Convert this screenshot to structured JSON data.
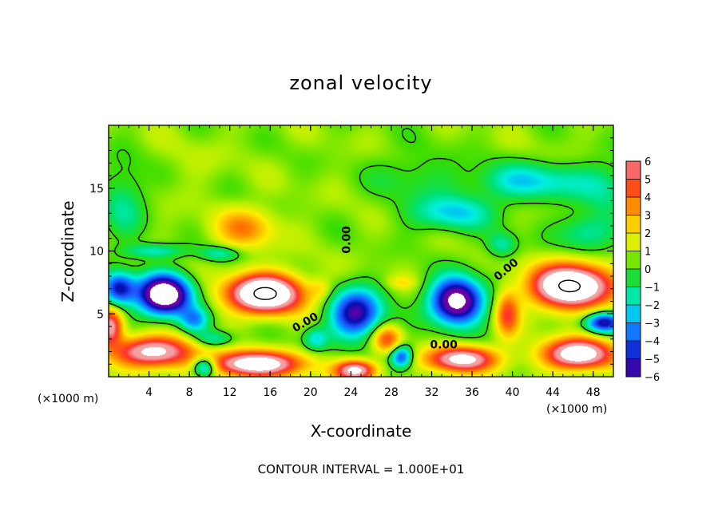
{
  "chart_data": {
    "type": "heatmap",
    "title": "zonal velocity",
    "xlabel": "X-coordinate",
    "ylabel": "Z-coordinate",
    "x_unit": "(×1000 m)",
    "y_unit": "(×1000 m)",
    "footer": "CONTOUR INTERVAL = 1.000E+01",
    "xlim": [
      0,
      50
    ],
    "ylim": [
      0,
      20
    ],
    "x_ticks": [
      4,
      8,
      12,
      16,
      20,
      24,
      28,
      32,
      36,
      40,
      44,
      48
    ],
    "y_ticks": [
      5,
      10,
      15
    ],
    "colorbar": {
      "levels": [
        6,
        5,
        4,
        3,
        2,
        1,
        0,
        -1,
        -2,
        -3,
        -4,
        -5,
        -6
      ],
      "colors": [
        "#f4a0a0",
        "#ff3030",
        "#ff6a00",
        "#ffae00",
        "#ffee00",
        "#b8f000",
        "#34dc00",
        "#00e070",
        "#00f0e0",
        "#00a0ff",
        "#2050ff",
        "#0010b0",
        "#6a00a8"
      ],
      "saturated_color": "#ffffff"
    },
    "contour_labels": [
      {
        "text": "0.00",
        "x": 23.6,
        "y": 10.9,
        "angle": -90
      },
      {
        "text": "0.00",
        "x": 19.5,
        "y": 4.3,
        "angle": -30
      },
      {
        "text": "0.00",
        "x": 33.2,
        "y": 2.5,
        "angle": 0
      },
      {
        "text": "0.00",
        "x": 39.4,
        "y": 8.5,
        "angle": -40
      }
    ],
    "features": [
      {
        "kind": "positive",
        "center": [
          13.5,
          11.8
        ],
        "peak": 3
      },
      {
        "kind": "positive",
        "center": [
          15.5,
          6.6
        ],
        "peak": 10
      },
      {
        "kind": "positive",
        "center": [
          45.5,
          7.2
        ],
        "peak": 10
      },
      {
        "kind": "positive",
        "center": [
          4.5,
          2.2
        ],
        "peak": 7
      },
      {
        "kind": "positive",
        "center": [
          14.5,
          1.4
        ],
        "peak": 8
      },
      {
        "kind": "positive",
        "center": [
          27.5,
          3.0
        ],
        "peak": 4
      },
      {
        "kind": "positive",
        "center": [
          35.0,
          1.5
        ],
        "peak": 7
      },
      {
        "kind": "positive",
        "center": [
          46.5,
          2.0
        ],
        "peak": 8
      },
      {
        "kind": "positive",
        "center": [
          24.5,
          0.7
        ],
        "peak": 7
      },
      {
        "kind": "negative",
        "center": [
          5.5,
          6.5
        ],
        "peak": -9
      },
      {
        "kind": "negative",
        "center": [
          34.5,
          6.0
        ],
        "peak": -8
      },
      {
        "kind": "negative",
        "center": [
          24.5,
          5.0
        ],
        "peak": -6
      },
      {
        "kind": "negative",
        "center": [
          1.0,
          7.0
        ],
        "peak": -5
      },
      {
        "kind": "negative",
        "center": [
          42.0,
          15.5
        ],
        "peak": -2.4
      },
      {
        "kind": "negative",
        "center": [
          34.0,
          13.0
        ],
        "peak": -2.2
      },
      {
        "kind": "negative",
        "center": [
          46.0,
          11.2
        ],
        "peak": -2
      }
    ]
  }
}
